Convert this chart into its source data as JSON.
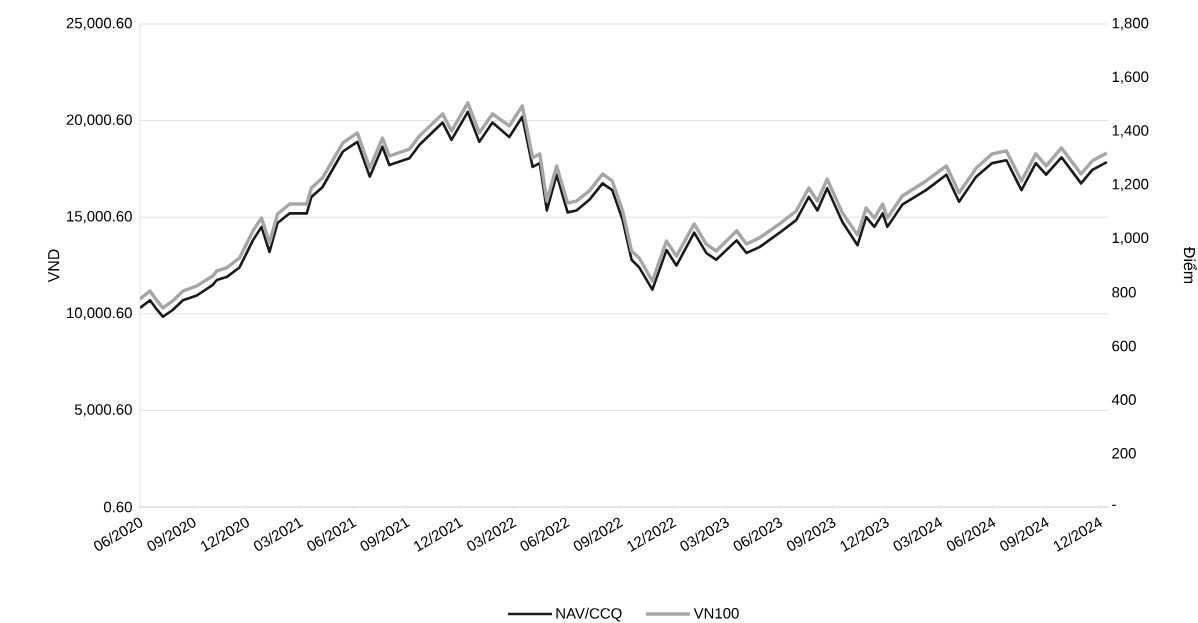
{
  "chart_data": {
    "type": "line",
    "ylabel": "VND",
    "y2label": "Điểm",
    "x": [
      "2020-06-01",
      "2020-06-18",
      "2020-06-30",
      "2020-07-10",
      "2020-07-27",
      "2020-08-14",
      "2020-09-07",
      "2020-10-04",
      "2020-10-11",
      "2020-10-28",
      "2020-11-19",
      "2020-12-12",
      "2020-12-27",
      "2021-01-10",
      "2021-01-24",
      "2021-02-13",
      "2021-03-13",
      "2021-03-21",
      "2021-04-09",
      "2021-05-14",
      "2021-06-08",
      "2021-06-29",
      "2021-07-21",
      "2021-08-02",
      "2021-09-06",
      "2021-09-23",
      "2021-11-02",
      "2021-11-17",
      "2021-12-15",
      "2022-01-04",
      "2022-01-27",
      "2022-02-23",
      "2022-03-17",
      "2022-04-04",
      "2022-04-16",
      "2022-04-28",
      "2022-05-15",
      "2022-06-03",
      "2022-06-18",
      "2022-07-10",
      "2022-08-02",
      "2022-08-19",
      "2022-09-06",
      "2022-09-21",
      "2022-10-04",
      "2022-10-27",
      "2022-11-20",
      "2022-12-07",
      "2023-01-07",
      "2023-01-28",
      "2023-02-13",
      "2023-03-19",
      "2023-04-05",
      "2023-04-27",
      "2023-06-01",
      "2023-06-29",
      "2023-07-21",
      "2023-08-05",
      "2023-08-22",
      "2023-09-17",
      "2023-10-13",
      "2023-10-28",
      "2023-11-11",
      "2023-11-25",
      "2023-12-03",
      "2023-12-29",
      "2024-02-08",
      "2024-03-13",
      "2024-04-04",
      "2024-05-03",
      "2024-05-31",
      "2024-06-24",
      "2024-07-20",
      "2024-08-14",
      "2024-09-01",
      "2024-09-27",
      "2024-10-31",
      "2024-11-19",
      "2024-12-14"
    ],
    "series": [
      {
        "name": "NAV/CCQ",
        "color": "#1a1a1a",
        "values": [
          10300,
          10700,
          10200,
          9850,
          10200,
          10700,
          10950,
          11500,
          11750,
          11900,
          12400,
          13800,
          14500,
          13200,
          14700,
          15200,
          15200,
          16050,
          16550,
          18400,
          18900,
          17100,
          18650,
          17700,
          18050,
          18750,
          19900,
          19000,
          20450,
          18900,
          19900,
          19150,
          20200,
          17600,
          17800,
          15350,
          17200,
          15250,
          15350,
          15900,
          16750,
          16400,
          14850,
          12800,
          12400,
          11250,
          13300,
          12500,
          14200,
          13150,
          12800,
          13800,
          13150,
          13450,
          14200,
          14850,
          16050,
          15350,
          16500,
          14750,
          13550,
          15000,
          14500,
          15200,
          14500,
          15650,
          16400,
          17200,
          15800,
          17100,
          17800,
          17950,
          16400,
          17800,
          17200,
          18100,
          16750,
          17450,
          17850
        ]
      },
      {
        "name": "VN100",
        "color": "#a6a6a6",
        "axis": "y2",
        "values": [
          775,
          805,
          768,
          742,
          768,
          805,
          824,
          861,
          880,
          891,
          928,
          1029,
          1077,
          984,
          1092,
          1129,
          1129,
          1189,
          1226,
          1357,
          1394,
          1263,
          1375,
          1308,
          1334,
          1383,
          1465,
          1401,
          1506,
          1394,
          1465,
          1420,
          1495,
          1301,
          1316,
          1140,
          1271,
          1133,
          1140,
          1178,
          1241,
          1215,
          1103,
          954,
          928,
          842,
          991,
          935,
          1055,
          980,
          954,
          1029,
          980,
          1003,
          1055,
          1103,
          1189,
          1140,
          1222,
          1096,
          1014,
          1114,
          1077,
          1129,
          1077,
          1159,
          1215,
          1271,
          1170,
          1263,
          1316,
          1327,
          1215,
          1316,
          1271,
          1338,
          1241,
          1290,
          1319
        ]
      }
    ],
    "xlim": [
      "2020-06-01",
      "2024-12-16"
    ],
    "xticks": [
      {
        "value": "2020-06",
        "label": "06/2020"
      },
      {
        "value": "2020-09",
        "label": "09/2020"
      },
      {
        "value": "2020-12",
        "label": "12/2020"
      },
      {
        "value": "2021-03",
        "label": "03/2021"
      },
      {
        "value": "2021-06",
        "label": "06/2021"
      },
      {
        "value": "2021-09",
        "label": "09/2021"
      },
      {
        "value": "2021-12",
        "label": "12/2021"
      },
      {
        "value": "2022-03",
        "label": "03/2022"
      },
      {
        "value": "2022-06",
        "label": "06/2022"
      },
      {
        "value": "2022-09",
        "label": "09/2022"
      },
      {
        "value": "2022-12",
        "label": "12/2022"
      },
      {
        "value": "2023-03",
        "label": "03/2023"
      },
      {
        "value": "2023-06",
        "label": "06/2023"
      },
      {
        "value": "2023-09",
        "label": "09/2023"
      },
      {
        "value": "2023-12",
        "label": "12/2023"
      },
      {
        "value": "2024-03",
        "label": "03/2024"
      },
      {
        "value": "2024-06",
        "label": "06/2024"
      },
      {
        "value": "2024-09",
        "label": "09/2024"
      },
      {
        "value": "2024-12",
        "label": "12/2024"
      }
    ],
    "ylim": [
      0.6,
      25000.6
    ],
    "yticks": [
      {
        "value": 0.6,
        "label": "0.60"
      },
      {
        "value": 5000.6,
        "label": "5,000.60"
      },
      {
        "value": 10000.6,
        "label": "10,000.60"
      },
      {
        "value": 15000.6,
        "label": "15,000.60"
      },
      {
        "value": 20000.6,
        "label": "20,000.60"
      },
      {
        "value": 25000.6,
        "label": "25,000.60"
      }
    ],
    "y2lim": [
      0,
      1800
    ],
    "y2ticks": [
      {
        "value": 0,
        "label": "-"
      },
      200,
      400,
      600,
      800,
      {
        "value": 1000,
        "label": "1,000"
      },
      {
        "value": 1200,
        "label": "1,200"
      },
      {
        "value": 1400,
        "label": "1,400"
      },
      {
        "value": 1600,
        "label": "1,600"
      },
      {
        "value": 1800,
        "label": "1,800"
      }
    ],
    "grid": "y",
    "legend": "bottom"
  }
}
